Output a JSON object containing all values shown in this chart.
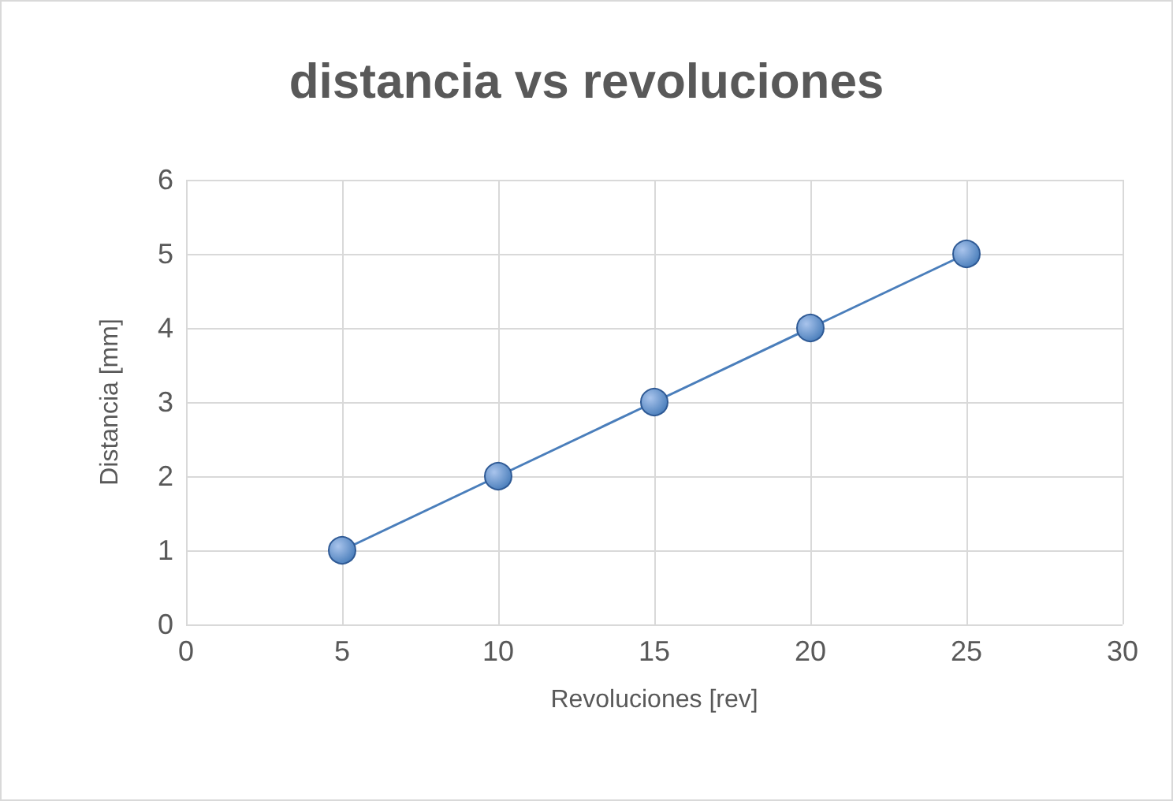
{
  "chart_data": {
    "type": "line",
    "title": "distancia vs revoluciones",
    "xlabel": "Revoluciones [rev]",
    "ylabel": "Distancia [mm]",
    "x": [
      5,
      10,
      15,
      20,
      25
    ],
    "series": [
      {
        "color": "#4a7ebb",
        "values": [
          1,
          2,
          3,
          4,
          5
        ]
      }
    ],
    "xlim": [
      0,
      30
    ],
    "xticks": [
      0,
      5,
      10,
      15,
      20,
      25,
      30
    ],
    "ylim": [
      0,
      6
    ],
    "yticks": [
      0,
      1,
      2,
      3,
      4,
      5,
      6
    ],
    "grid": true,
    "marker": "circle"
  }
}
